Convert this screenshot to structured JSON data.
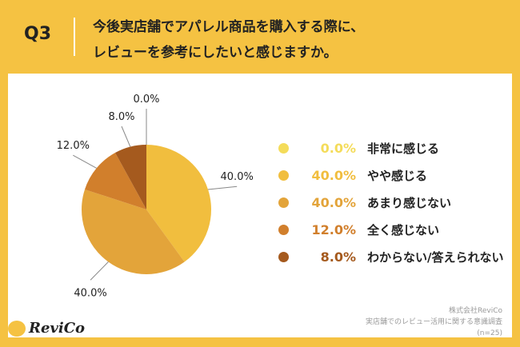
{
  "header": {
    "question": "Q3",
    "title_line1": "今後実店舗でアパレル商品を購入する際に、",
    "title_line2": "レビューを参考にしたいと感じますか。"
  },
  "chart_data": {
    "type": "pie",
    "categories": [
      "非常に感じる",
      "やや感じる",
      "あまり感じない",
      "全く感じない",
      "わからない/答えられない"
    ],
    "values": [
      0.0,
      40.0,
      40.0,
      12.0,
      8.0
    ],
    "labels": [
      "0.0%",
      "40.0%",
      "40.0%",
      "12.0%",
      "8.0%"
    ],
    "colors": [
      "#f4dc5a",
      "#f1be3e",
      "#e3a43a",
      "#d17f2c",
      "#a55a1e"
    ],
    "start": "top",
    "direction": "clockwise",
    "legend": "right"
  },
  "footer": {
    "company": "株式会社ReviCo",
    "survey": "実店舗でのレビュー活用に関する意識調査",
    "n": "(n=25)",
    "logo": "ReviCo"
  }
}
